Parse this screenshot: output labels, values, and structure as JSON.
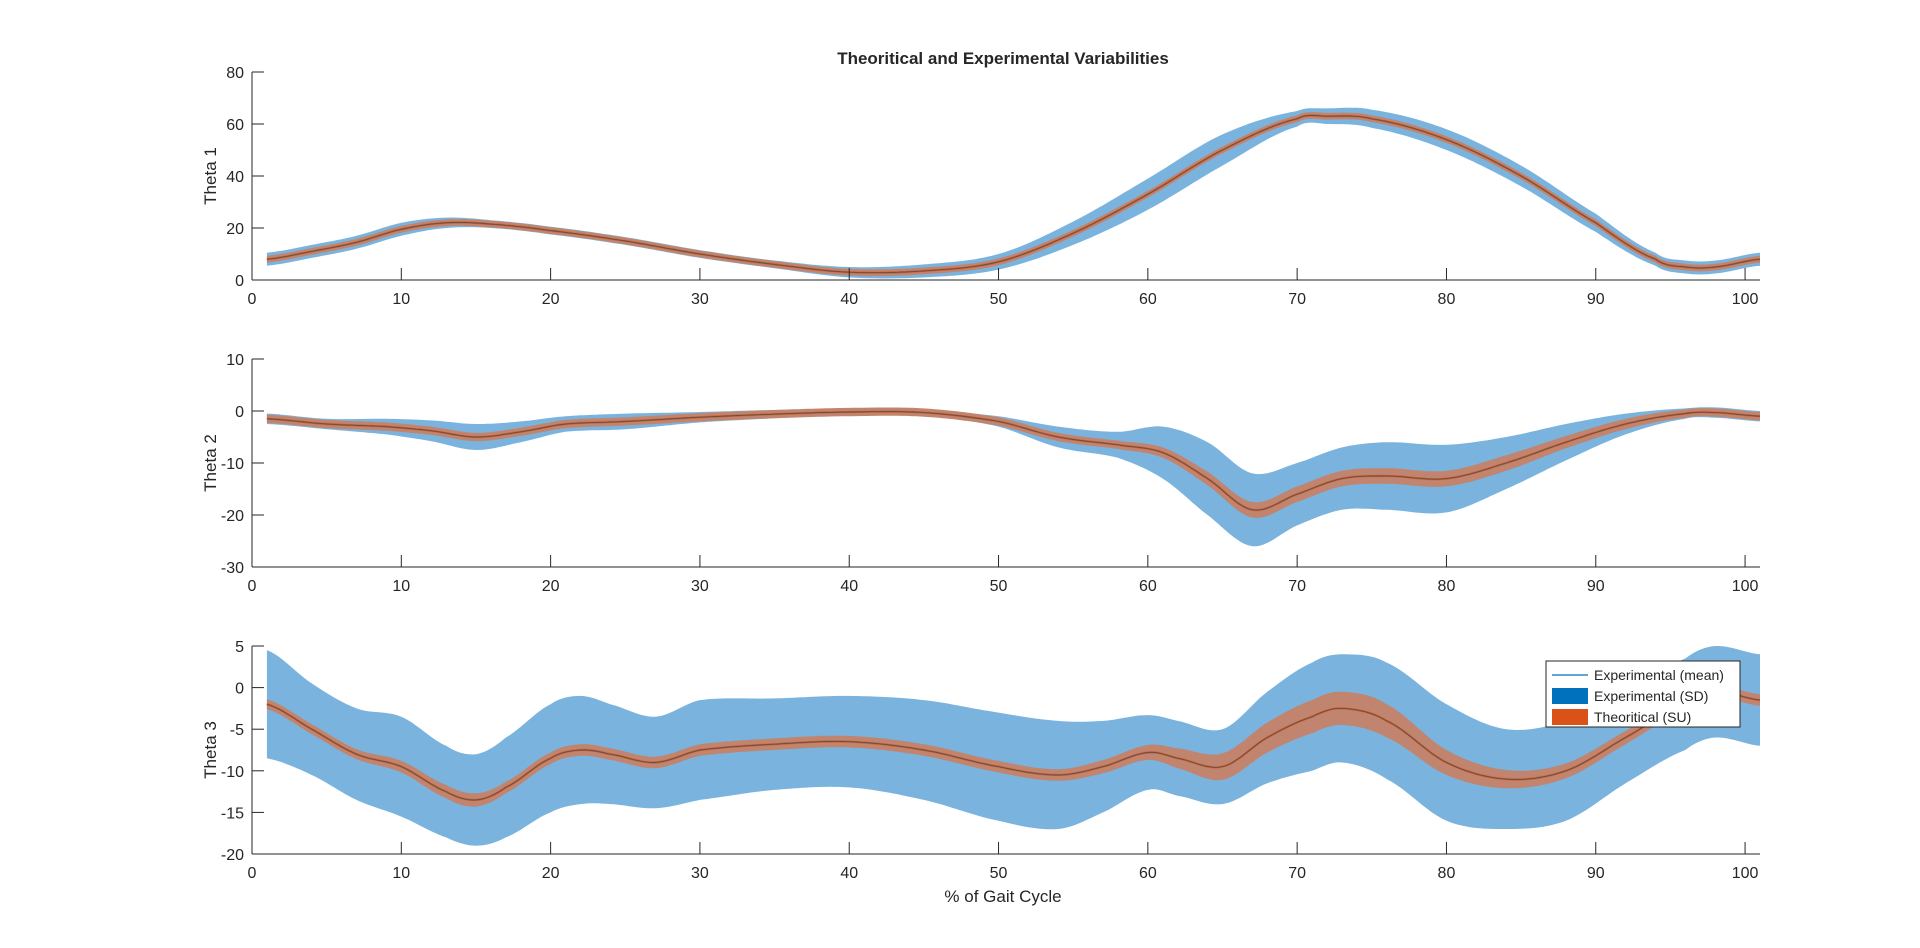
{
  "chart_data": {
    "type": "area",
    "title": "Theoritical and Experimental Variabilities",
    "xlabel": "% of Gait Cycle",
    "xlim": [
      0,
      101
    ],
    "xticks": [
      0,
      10,
      20,
      30,
      40,
      50,
      60,
      70,
      80,
      90,
      100
    ],
    "colors": {
      "sd_band": "#7ab4de",
      "su_band": "#c1856f",
      "theory_mean": "#d95319",
      "exp_mean": "#555555",
      "legend_sd": "#0072bd",
      "legend_su": "#d95319",
      "legend_mean": "#0072bd"
    },
    "legend": {
      "placement": "top-right of third panel",
      "entries": [
        "Experimental (mean)",
        "Experimental (SD)",
        "Theoritical (SU)"
      ]
    },
    "panels": [
      {
        "ylabel": "Theta 1",
        "ylim": [
          0,
          80
        ],
        "yticks": [
          0,
          20,
          40,
          60,
          80
        ],
        "x": [
          1,
          4,
          7,
          10,
          13,
          16,
          20,
          25,
          30,
          35,
          40,
          45,
          50,
          55,
          60,
          65,
          70,
          72,
          75,
          80,
          85,
          90,
          94,
          96,
          98,
          101
        ],
        "mean": [
          8,
          11,
          14.5,
          19.5,
          22,
          21.5,
          19,
          15,
          10,
          6,
          3,
          3.5,
          7,
          18,
          33,
          50,
          62,
          63,
          62,
          54,
          40,
          22,
          8,
          5,
          5,
          8
        ],
        "sd": [
          2.5,
          2.5,
          2.5,
          2.5,
          2,
          1.5,
          1.5,
          1.5,
          1.5,
          1.5,
          2,
          2.5,
          3,
          4.5,
          6,
          6,
          3,
          3,
          3.5,
          4,
          4,
          3.5,
          2.5,
          2.5,
          2.5,
          2.5
        ],
        "su": [
          1.3,
          1.3,
          1.3,
          1.3,
          1.3,
          1.3,
          1.3,
          1.3,
          1.3,
          1.3,
          1.3,
          1.3,
          1.3,
          1.3,
          1.3,
          1.3,
          1.3,
          1.3,
          1.3,
          1.3,
          1.3,
          1.3,
          1.3,
          1.3,
          1.3,
          1.3
        ]
      },
      {
        "ylabel": "Theta 2",
        "ylim": [
          -30,
          10
        ],
        "yticks": [
          -30,
          -20,
          -10,
          0,
          10
        ],
        "x": [
          1,
          5,
          9,
          12,
          15,
          18,
          21,
          25,
          30,
          35,
          40,
          45,
          50,
          54,
          58,
          61,
          64,
          67,
          70,
          73,
          76,
          80,
          84,
          88,
          92,
          96,
          98,
          101
        ],
        "mean": [
          -1.5,
          -2.5,
          -3,
          -3.8,
          -5,
          -4,
          -2.5,
          -2,
          -1.2,
          -0.6,
          -0.2,
          -0.3,
          -2,
          -5,
          -6.5,
          -8,
          -13,
          -19,
          -16,
          -13,
          -12.5,
          -13,
          -10,
          -6,
          -2.5,
          -0.5,
          -0.3,
          -1
        ],
        "sd": [
          1,
          1,
          1.5,
          2,
          2.5,
          2,
          1.5,
          1.5,
          1,
          0.8,
          0.5,
          0.5,
          1,
          2,
          2.5,
          5,
          7,
          7,
          6,
          6,
          6.5,
          6.5,
          5,
          3.5,
          2,
          1,
          1,
          1
        ],
        "su": [
          0.8,
          0.8,
          0.8,
          0.8,
          0.8,
          0.8,
          0.8,
          0.8,
          0.8,
          0.8,
          0.8,
          0.8,
          0.8,
          0.8,
          0.8,
          1,
          1.3,
          1.5,
          1.5,
          1.5,
          1.5,
          1.5,
          1.5,
          1.2,
          1,
          0.8,
          0.8,
          0.8
        ]
      },
      {
        "ylabel": "Theta 3",
        "ylim": [
          -20,
          5
        ],
        "yticks": [
          -20,
          -15,
          -10,
          -5,
          0,
          5
        ],
        "x": [
          1,
          4,
          7,
          10,
          13,
          15,
          17,
          20,
          22,
          24,
          27,
          30,
          35,
          40,
          45,
          50,
          54,
          57,
          60,
          62,
          65,
          68,
          71,
          73,
          76,
          80,
          84,
          88,
          92,
          96,
          98,
          101
        ],
        "mean": [
          -2,
          -5,
          -8,
          -9.5,
          -12.5,
          -13.5,
          -12,
          -8.5,
          -7.5,
          -8,
          -9,
          -7.5,
          -6.8,
          -6.5,
          -7.5,
          -9.5,
          -10.5,
          -9.5,
          -7.8,
          -8.5,
          -9.5,
          -6,
          -3.5,
          -2.5,
          -4,
          -9,
          -11,
          -10,
          -6,
          -2,
          -0.5,
          -1.5
        ],
        "sd": [
          6.5,
          5.5,
          5.5,
          6,
          5.5,
          5.5,
          6,
          6.5,
          6.5,
          6,
          5.5,
          6,
          5.5,
          5.5,
          6,
          6.5,
          6.5,
          5.5,
          4.5,
          4.5,
          4.5,
          5.5,
          6.5,
          6.5,
          7,
          7,
          6,
          6,
          5.5,
          5.5,
          5.5,
          5.5
        ],
        "su": [
          0.6,
          0.6,
          0.6,
          0.7,
          0.8,
          0.8,
          0.7,
          0.7,
          0.7,
          0.7,
          0.7,
          0.7,
          0.7,
          0.7,
          0.7,
          0.7,
          0.7,
          0.8,
          0.9,
          1.2,
          1.6,
          1.8,
          2,
          2,
          2,
          1.5,
          1.1,
          0.9,
          0.8,
          0.7,
          0.7,
          0.7
        ]
      }
    ]
  }
}
